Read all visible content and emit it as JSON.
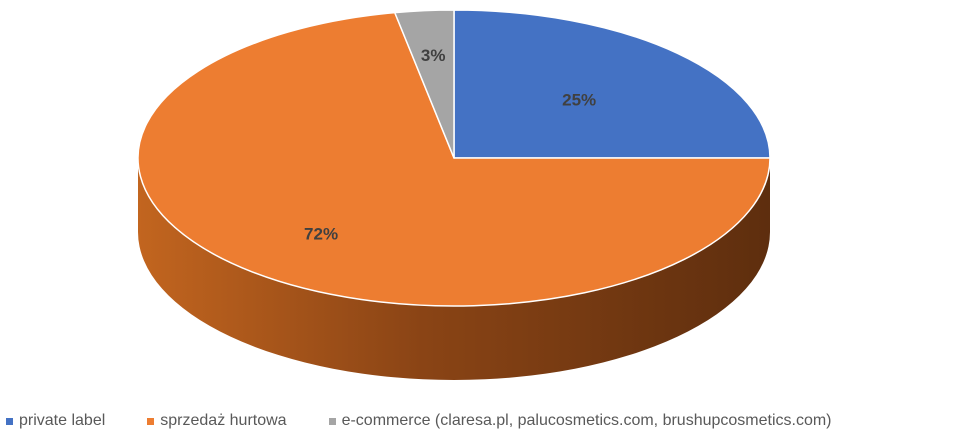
{
  "chart_data": {
    "type": "pie",
    "style": "3d",
    "title": "",
    "slices": [
      {
        "label": "private label",
        "value": 25,
        "data_label": "25%",
        "color": "#4472C4"
      },
      {
        "label": "sprzedaż hurtowa",
        "value": 72,
        "data_label": "72%",
        "color": "#ED7D31"
      },
      {
        "label": "e-commerce (claresa.pl, palucosmetics.com, brushupcosmetics.com)",
        "value": 3,
        "data_label": "3%",
        "color": "#A5A5A5"
      }
    ],
    "legend_position": "bottom"
  }
}
